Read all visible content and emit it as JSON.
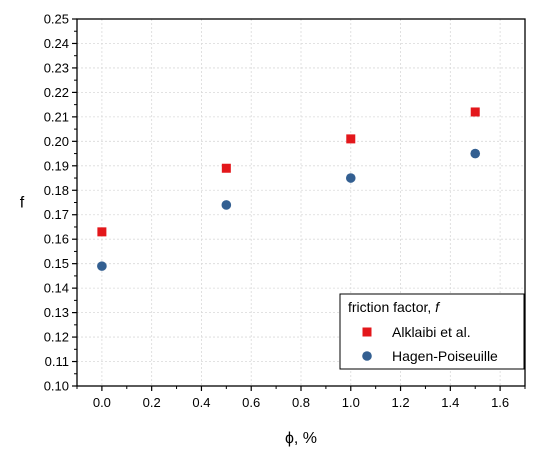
{
  "chart_data": {
    "type": "scatter",
    "xlabel": "ϕ, %",
    "ylabel": "f",
    "xlim": [
      -0.1,
      1.7
    ],
    "ylim": [
      0.1,
      0.25
    ],
    "x_ticks": [
      "0.0",
      "0.2",
      "0.4",
      "0.6",
      "0.8",
      "1.0",
      "1.2",
      "1.4",
      "1.6"
    ],
    "y_ticks": [
      "0.10",
      "0.11",
      "0.12",
      "0.13",
      "0.14",
      "0.15",
      "0.16",
      "0.17",
      "0.18",
      "0.19",
      "0.20",
      "0.21",
      "0.22",
      "0.23",
      "0.24",
      "0.25"
    ],
    "grid": true,
    "legend": {
      "title_prefix": "friction factor, ",
      "title_symbol": "f",
      "placement": "bottom-right"
    },
    "series": [
      {
        "name": "Alklaibi et al.",
        "marker": "square",
        "color": "#e3171b",
        "points": [
          {
            "x": 0.0,
            "y": 0.163
          },
          {
            "x": 0.5,
            "y": 0.189
          },
          {
            "x": 1.0,
            "y": 0.201
          },
          {
            "x": 1.5,
            "y": 0.212
          }
        ]
      },
      {
        "name": "Hagen-Poiseuille",
        "marker": "circle",
        "color": "#335f91",
        "points": [
          {
            "x": 0.0,
            "y": 0.149
          },
          {
            "x": 0.5,
            "y": 0.174
          },
          {
            "x": 1.0,
            "y": 0.185
          },
          {
            "x": 1.5,
            "y": 0.195
          }
        ]
      }
    ]
  }
}
